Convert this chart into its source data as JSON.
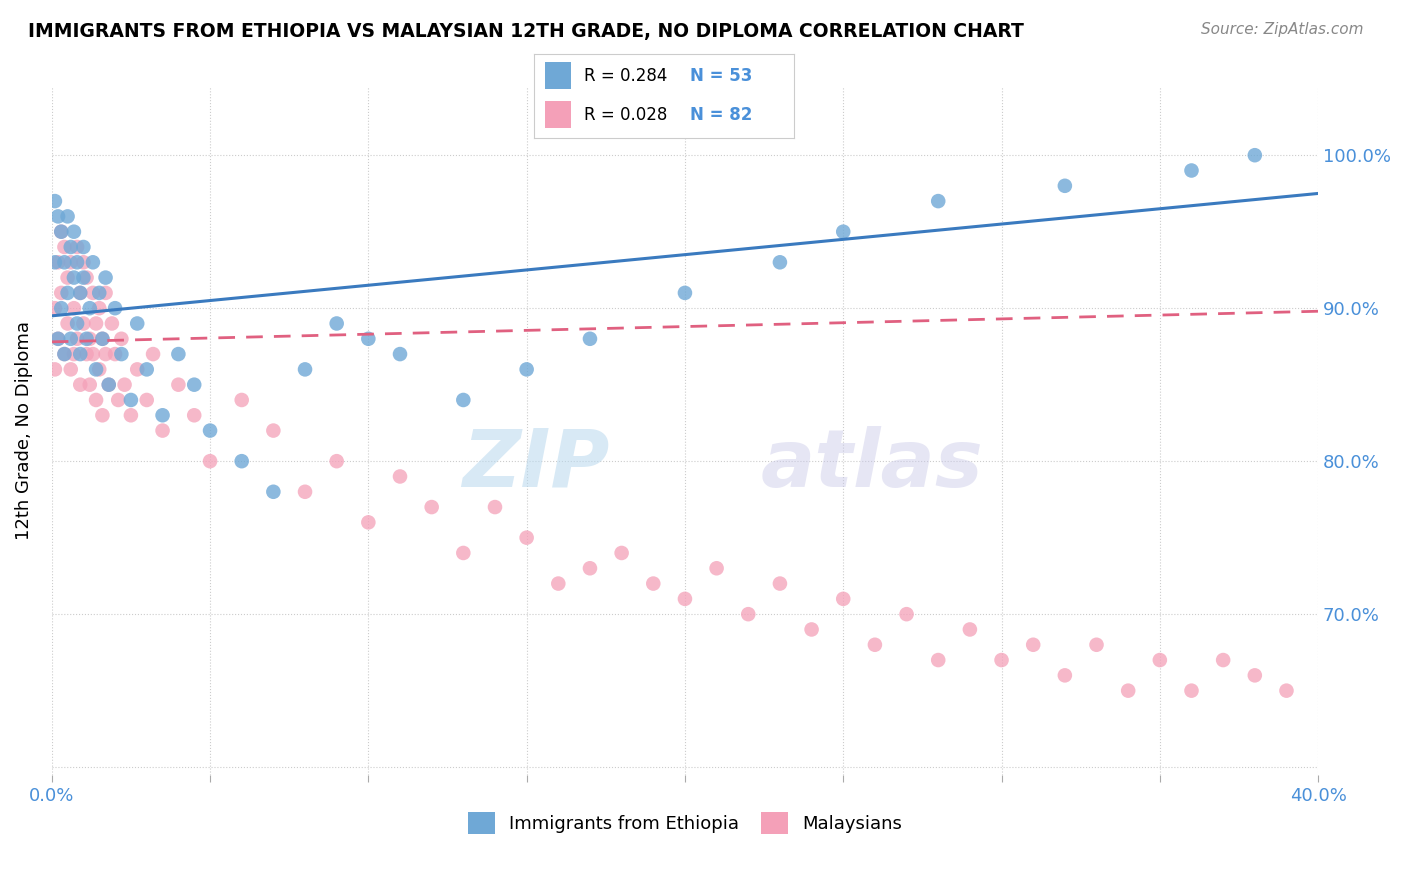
{
  "title": "IMMIGRANTS FROM ETHIOPIA VS MALAYSIAN 12TH GRADE, NO DIPLOMA CORRELATION CHART",
  "source": "Source: ZipAtlas.com",
  "ylabel": "12th Grade, No Diploma",
  "xlim": [
    0.0,
    0.4
  ],
  "ylim": [
    0.595,
    1.045
  ],
  "blue_color": "#6fa8d6",
  "pink_color": "#f4a0b8",
  "blue_line_color": "#3a7abf",
  "pink_line_color": "#e06080",
  "R_blue": 0.284,
  "N_blue": 53,
  "R_pink": 0.028,
  "N_pink": 82,
  "legend_label_blue": "Immigrants from Ethiopia",
  "legend_label_pink": "Malaysians",
  "blue_scatter_x": [
    0.001,
    0.001,
    0.002,
    0.002,
    0.003,
    0.003,
    0.004,
    0.004,
    0.005,
    0.005,
    0.006,
    0.006,
    0.007,
    0.007,
    0.008,
    0.008,
    0.009,
    0.009,
    0.01,
    0.01,
    0.011,
    0.012,
    0.013,
    0.014,
    0.015,
    0.016,
    0.017,
    0.018,
    0.02,
    0.022,
    0.025,
    0.027,
    0.03,
    0.035,
    0.04,
    0.045,
    0.05,
    0.06,
    0.07,
    0.08,
    0.09,
    0.1,
    0.11,
    0.13,
    0.15,
    0.17,
    0.2,
    0.23,
    0.25,
    0.28,
    0.32,
    0.36,
    0.38
  ],
  "blue_scatter_y": [
    0.93,
    0.97,
    0.96,
    0.88,
    0.95,
    0.9,
    0.93,
    0.87,
    0.91,
    0.96,
    0.88,
    0.94,
    0.92,
    0.95,
    0.89,
    0.93,
    0.91,
    0.87,
    0.92,
    0.94,
    0.88,
    0.9,
    0.93,
    0.86,
    0.91,
    0.88,
    0.92,
    0.85,
    0.9,
    0.87,
    0.84,
    0.89,
    0.86,
    0.83,
    0.87,
    0.85,
    0.82,
    0.8,
    0.78,
    0.86,
    0.89,
    0.88,
    0.87,
    0.84,
    0.86,
    0.88,
    0.91,
    0.93,
    0.95,
    0.97,
    0.98,
    0.99,
    1.0
  ],
  "pink_scatter_x": [
    0.001,
    0.001,
    0.002,
    0.002,
    0.003,
    0.003,
    0.004,
    0.004,
    0.005,
    0.005,
    0.006,
    0.006,
    0.007,
    0.007,
    0.008,
    0.008,
    0.009,
    0.009,
    0.01,
    0.01,
    0.011,
    0.011,
    0.012,
    0.012,
    0.013,
    0.013,
    0.014,
    0.014,
    0.015,
    0.015,
    0.016,
    0.016,
    0.017,
    0.017,
    0.018,
    0.019,
    0.02,
    0.021,
    0.022,
    0.023,
    0.025,
    0.027,
    0.03,
    0.032,
    0.035,
    0.04,
    0.045,
    0.05,
    0.06,
    0.07,
    0.08,
    0.09,
    0.1,
    0.11,
    0.12,
    0.13,
    0.14,
    0.15,
    0.16,
    0.17,
    0.18,
    0.19,
    0.2,
    0.21,
    0.22,
    0.23,
    0.24,
    0.25,
    0.26,
    0.27,
    0.28,
    0.29,
    0.3,
    0.31,
    0.32,
    0.33,
    0.34,
    0.35,
    0.36,
    0.37,
    0.38,
    0.39
  ],
  "pink_scatter_y": [
    0.9,
    0.86,
    0.93,
    0.88,
    0.95,
    0.91,
    0.87,
    0.94,
    0.89,
    0.92,
    0.86,
    0.93,
    0.9,
    0.87,
    0.94,
    0.88,
    0.91,
    0.85,
    0.93,
    0.89,
    0.87,
    0.92,
    0.88,
    0.85,
    0.91,
    0.87,
    0.89,
    0.84,
    0.9,
    0.86,
    0.88,
    0.83,
    0.91,
    0.87,
    0.85,
    0.89,
    0.87,
    0.84,
    0.88,
    0.85,
    0.83,
    0.86,
    0.84,
    0.87,
    0.82,
    0.85,
    0.83,
    0.8,
    0.84,
    0.82,
    0.78,
    0.8,
    0.76,
    0.79,
    0.77,
    0.74,
    0.77,
    0.75,
    0.72,
    0.73,
    0.74,
    0.72,
    0.71,
    0.73,
    0.7,
    0.72,
    0.69,
    0.71,
    0.68,
    0.7,
    0.67,
    0.69,
    0.67,
    0.68,
    0.66,
    0.68,
    0.65,
    0.67,
    0.65,
    0.67,
    0.66,
    0.65
  ]
}
